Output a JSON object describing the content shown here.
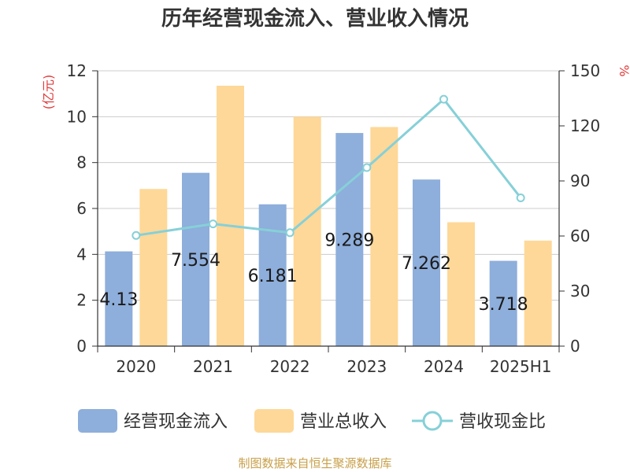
{
  "chart_data": {
    "type": "bar",
    "title": "历年经营现金流入、营业收入情况",
    "categories": [
      "2020",
      "2021",
      "2022",
      "2023",
      "2024",
      "2025H1"
    ],
    "left_axis": {
      "unit": "(亿元)",
      "ylim": [
        0,
        12
      ],
      "ticks": [
        "0",
        "2",
        "4",
        "6",
        "8",
        "10",
        "12"
      ]
    },
    "right_axis": {
      "unit": "%",
      "ylim": [
        0,
        150
      ],
      "ticks": [
        "0",
        "30",
        "60",
        "90",
        "120",
        "150"
      ]
    },
    "series": [
      {
        "name": "经营现金流入",
        "type": "bar",
        "axis": "left",
        "color": "#8eaedb",
        "values": [
          4.13,
          7.554,
          6.181,
          9.289,
          7.262,
          3.718
        ],
        "labels": [
          "4.13",
          "7.554",
          "6.181",
          "9.289",
          "7.262",
          "3.718"
        ]
      },
      {
        "name": "营业总收入",
        "type": "bar",
        "axis": "left",
        "color": "#fed898",
        "values": [
          6.85,
          11.35,
          10.0,
          9.55,
          5.4,
          4.6
        ]
      },
      {
        "name": "营收现金比",
        "type": "line",
        "axis": "right",
        "color": "#86d0d8",
        "values": [
          60.3,
          66.6,
          61.8,
          97.3,
          134.5,
          80.8
        ]
      }
    ],
    "grid": true,
    "legend_position": "bottom"
  },
  "source_text": "制图数据来自恒生聚源数据库"
}
